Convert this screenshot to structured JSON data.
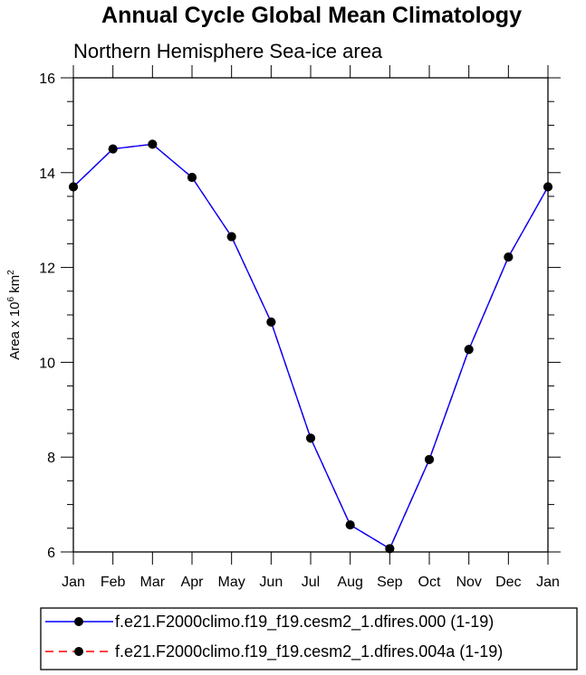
{
  "chart_data": {
    "type": "line",
    "title": "Annual Cycle Global Mean Climatology",
    "subtitle": "Northern Hemisphere Sea-ice area",
    "ylabel": "Area x 10",
    "ylabel_exp": "6",
    "ylabel_unit": "km",
    "ylabel_unit_exp": "2",
    "xlabel": "",
    "categories": [
      "Jan",
      "Feb",
      "Mar",
      "Apr",
      "May",
      "Jun",
      "Jul",
      "Aug",
      "Sep",
      "Oct",
      "Nov",
      "Dec",
      "Jan"
    ],
    "ylim": [
      6,
      16
    ],
    "yticks": [
      "6",
      "8",
      "10",
      "12",
      "14",
      "16"
    ],
    "grid": false,
    "legend_position": "bottom",
    "series": [
      {
        "name": "f.e21.F2000climo.f19_f19.cesm2_1.dfires.000 (1-19)",
        "color": "#0000ff",
        "style": "solid",
        "values": [
          13.7,
          14.5,
          14.6,
          13.9,
          12.65,
          10.85,
          8.4,
          6.57,
          6.07,
          7.95,
          10.27,
          12.22,
          13.7
        ]
      },
      {
        "name": "f.e21.F2000climo.f19_f19.cesm2_1.dfires.004a (1-19)",
        "color": "#ff0000",
        "style": "dashed",
        "values": [
          13.7,
          14.5,
          14.6,
          13.9,
          12.65,
          10.85,
          8.4,
          6.57,
          6.07,
          7.95,
          10.27,
          12.22,
          13.7
        ]
      }
    ]
  }
}
